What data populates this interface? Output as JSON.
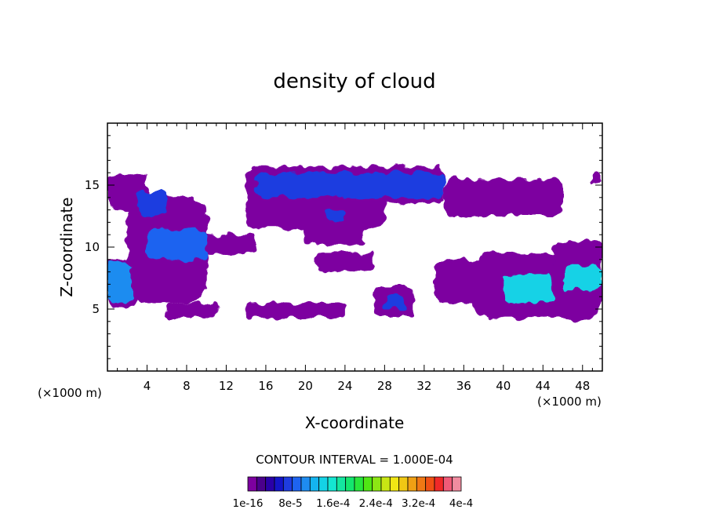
{
  "chart_data": {
    "type": "heatmap",
    "title": "density of cloud",
    "xlabel": "X-coordinate",
    "ylabel": "Z-coordinate",
    "x_unit_left": "(×1000 m)",
    "x_unit_right": "(×1000 m)",
    "xlim": [
      0,
      50
    ],
    "ylim": [
      0,
      20
    ],
    "xticks": [
      4,
      8,
      12,
      16,
      20,
      24,
      28,
      32,
      36,
      40,
      44,
      48
    ],
    "yticks": [
      5,
      10,
      15
    ],
    "contour_interval_label": "CONTOUR INTERVAL = 1.000E-04",
    "colorbar": {
      "tick_labels": [
        "1e-16",
        "8e-5",
        "1.6e-4",
        "2.4e-4",
        "3.2e-4",
        "4e-4"
      ],
      "levels": 24,
      "colors": [
        "#7d00a0",
        "#4a008c",
        "#2a00a8",
        "#1414c8",
        "#1e3ce0",
        "#1e64f0",
        "#1e8cf0",
        "#14b4f0",
        "#14d2e6",
        "#14e6d2",
        "#14e6a0",
        "#14e66e",
        "#28e63c",
        "#50e614",
        "#8ce614",
        "#c8e614",
        "#f0e614",
        "#f0c814",
        "#f0a014",
        "#f07814",
        "#f05014",
        "#f02828",
        "#f05a78",
        "#f08ca0"
      ]
    },
    "blobs": [
      {
        "x": [
          0,
          4
        ],
        "z": [
          13,
          16
        ],
        "level": 0
      },
      {
        "x": [
          2,
          10
        ],
        "z": [
          5.5,
          14
        ],
        "level": 0
      },
      {
        "x": [
          7,
          15
        ],
        "z": [
          9.5,
          11
        ],
        "level": 0
      },
      {
        "x": [
          0,
          3
        ],
        "z": [
          5,
          9
        ],
        "level": 0
      },
      {
        "x": [
          6,
          11
        ],
        "z": [
          4.3,
          5.5
        ],
        "level": 0
      },
      {
        "x": [
          14,
          34
        ],
        "z": [
          13.5,
          16.5
        ],
        "level": 0
      },
      {
        "x": [
          14,
          28
        ],
        "z": [
          11.5,
          14
        ],
        "level": 0
      },
      {
        "x": [
          20,
          26
        ],
        "z": [
          10.2,
          12
        ],
        "level": 0
      },
      {
        "x": [
          14,
          24
        ],
        "z": [
          4.3,
          5.5
        ],
        "level": 0
      },
      {
        "x": [
          21,
          27
        ],
        "z": [
          8,
          9.5
        ],
        "level": 0
      },
      {
        "x": [
          27,
          31
        ],
        "z": [
          4.4,
          6.8
        ],
        "level": 0
      },
      {
        "x": [
          34,
          46
        ],
        "z": [
          12.5,
          15.5
        ],
        "level": 0
      },
      {
        "x": [
          33,
          38
        ],
        "z": [
          5.5,
          9
        ],
        "level": 0
      },
      {
        "x": [
          37,
          50
        ],
        "z": [
          4.2,
          9.5
        ],
        "level": 0
      },
      {
        "x": [
          45,
          50
        ],
        "z": [
          8,
          10.5
        ],
        "level": 0
      },
      {
        "x": [
          49,
          50
        ],
        "z": [
          15,
          16
        ],
        "level": 0
      },
      {
        "x": [
          3,
          6
        ],
        "z": [
          12.5,
          14.5
        ],
        "level": 4
      },
      {
        "x": [
          4,
          10
        ],
        "z": [
          9,
          11.5
        ],
        "level": 5
      },
      {
        "x": [
          0,
          2.5
        ],
        "z": [
          5.5,
          8.8
        ],
        "level": 6
      },
      {
        "x": [
          15,
          34
        ],
        "z": [
          14,
          16
        ],
        "level": 4
      },
      {
        "x": [
          22,
          24
        ],
        "z": [
          12,
          13
        ],
        "level": 4
      },
      {
        "x": [
          28,
          30
        ],
        "z": [
          5,
          6.2
        ],
        "level": 4
      },
      {
        "x": [
          40,
          45
        ],
        "z": [
          5.5,
          7.8
        ],
        "level": 8
      },
      {
        "x": [
          46,
          50
        ],
        "z": [
          6.5,
          8.5
        ],
        "level": 8
      }
    ]
  }
}
